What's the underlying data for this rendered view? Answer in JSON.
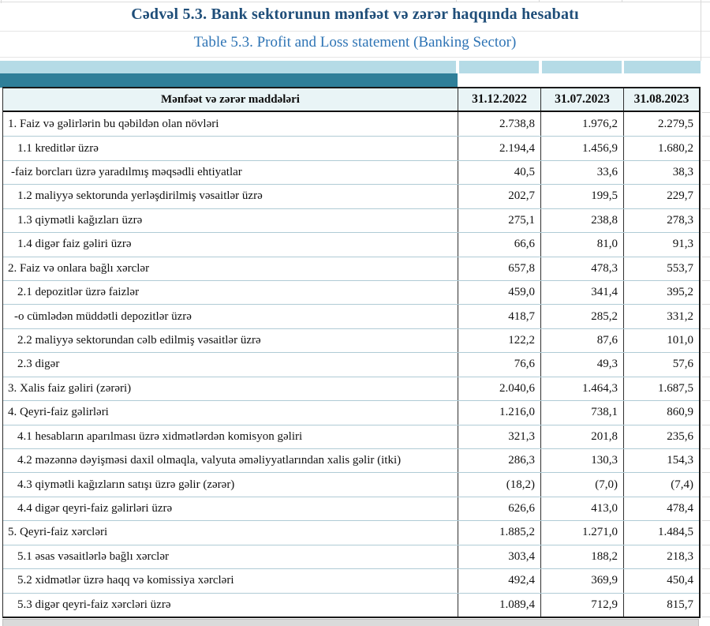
{
  "title_az": "Cədvəl 5.3. Bank sektorunun mənfəət və zərər haqqında hesabatı",
  "title_en": "Table 5.3. Profit and Loss statement (Banking Sector)",
  "table": {
    "header": {
      "label": "Mənfəət və zərər maddələri",
      "columns": [
        "31.12.2022",
        "31.07.2023",
        "31.08.2023"
      ]
    },
    "rows": [
      {
        "label": "1. Faiz və gəlirlərin bu qəbildən olan növləri",
        "indent": 0,
        "values": [
          "2.738,8",
          "1.976,2",
          "2.279,5"
        ]
      },
      {
        "label": "1.1 kreditlər üzrə",
        "indent": 1,
        "values": [
          "2.194,4",
          "1.456,9",
          "1.680,2"
        ]
      },
      {
        "label": "-faiz borcları üzrə yaradılmış məqsədli ehtiyatlar",
        "indent": 2,
        "values": [
          "40,5",
          "33,6",
          "38,3"
        ]
      },
      {
        "label": "1.2 maliyyə sektorunda yerləşdirilmiş vəsaitlər üzrə",
        "indent": 1,
        "values": [
          "202,7",
          "199,5",
          "229,7"
        ]
      },
      {
        "label": "1.3 qiymətli kağızları üzrə",
        "indent": 1,
        "values": [
          "275,1",
          "238,8",
          "278,3"
        ]
      },
      {
        "label": "1.4 digər faiz gəliri üzrə",
        "indent": 1,
        "values": [
          "66,6",
          "81,0",
          "91,3"
        ]
      },
      {
        "label": "2. Faiz və onlara bağlı xərclər",
        "indent": 0,
        "values": [
          "657,8",
          "478,3",
          "553,7"
        ]
      },
      {
        "label": "2.1 depozitlər üzrə faizlər",
        "indent": 1,
        "values": [
          "459,0",
          "341,4",
          "395,2"
        ]
      },
      {
        "label": "-o cümlədən müddətli depozitlər üzrə",
        "indent": 3,
        "values": [
          "418,7",
          "285,2",
          "331,2"
        ]
      },
      {
        "label": "2.2 maliyyə sektorundan cəlb edilmiş vəsaitlər üzrə",
        "indent": 1,
        "values": [
          "122,2",
          "87,6",
          "101,0"
        ]
      },
      {
        "label": "2.3 digər",
        "indent": 1,
        "values": [
          "76,6",
          "49,3",
          "57,6"
        ]
      },
      {
        "label": "3. Xalis faiz gəliri (zərəri)",
        "indent": 0,
        "values": [
          "2.040,6",
          "1.464,3",
          "1.687,5"
        ]
      },
      {
        "label": "4. Qeyri-faiz gəlirləri",
        "indent": 0,
        "values": [
          "1.216,0",
          "738,1",
          "860,9"
        ]
      },
      {
        "label": "4.1 hesabların aparılması üzrə xidmətlərdən komisyon gəliri",
        "indent": 1,
        "values": [
          "321,3",
          "201,8",
          "235,6"
        ]
      },
      {
        "label": "4.2 məzənnə dəyişməsi daxil olmaqla, valyuta əməliyyatlarından xalis gəlir (itki)",
        "indent": 1,
        "values": [
          "286,3",
          "130,3",
          "154,3"
        ]
      },
      {
        "label": "4.3 qiymətli kağızların satışı üzrə gəlir (zərər)",
        "indent": 1,
        "values": [
          "(18,2)",
          "(7,0)",
          "(7,4)"
        ]
      },
      {
        "label": "4.4 digər qeyri-faiz gəlirləri üzrə",
        "indent": 1,
        "values": [
          "626,6",
          "413,0",
          "478,4"
        ]
      },
      {
        "label": "5. Qeyri-faiz xərcləri",
        "indent": 0,
        "values": [
          "1.885,2",
          "1.271,0",
          "1.484,5"
        ]
      },
      {
        "label": "5.1 əsas vəsaitlərlə bağlı xərclər",
        "indent": 1,
        "values": [
          "303,4",
          "188,2",
          "218,3"
        ]
      },
      {
        "label": "5.2 xidmətlər üzrə haqq və komissiya xərcləri",
        "indent": 1,
        "values": [
          "492,4",
          "369,9",
          "450,4"
        ]
      },
      {
        "label": "5.3 digər qeyri-faiz xərcləri üzrə",
        "indent": 1,
        "values": [
          "1.089,4",
          "712,9",
          "815,7"
        ]
      }
    ]
  },
  "colors": {
    "title_az": "#1f4e79",
    "title_en": "#2e74b5",
    "band_light": "#b5dbe6",
    "band_teal": "#2f7f99",
    "header_bg": "#e9f4f6",
    "row_separator": "#b0cbd5",
    "table_border": "#1a1a1a"
  }
}
